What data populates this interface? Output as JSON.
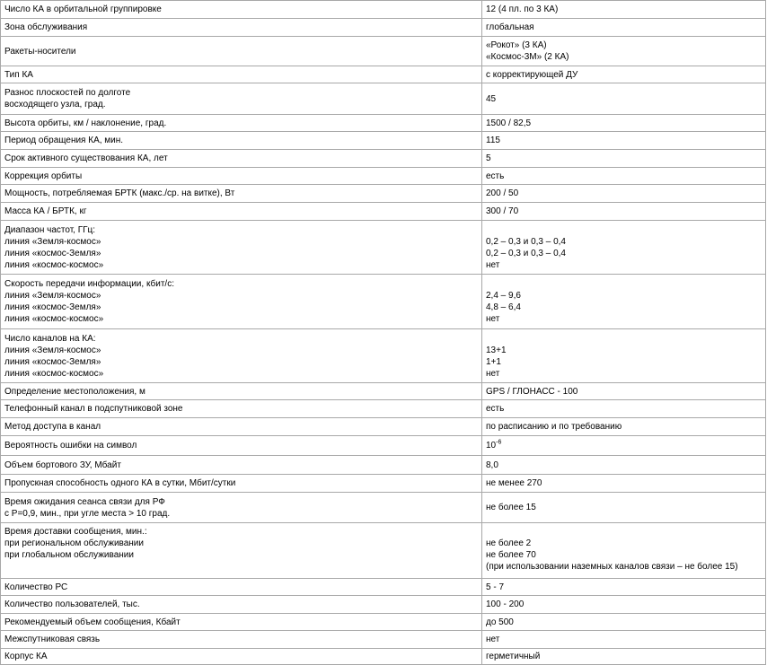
{
  "rows": [
    {
      "label": [
        "Число КА в орбитальной группировке"
      ],
      "value": [
        "12 (4 пл. по 3 КА)"
      ]
    },
    {
      "label": [
        "Зона обслуживания"
      ],
      "value": [
        "глобальная"
      ]
    },
    {
      "label": [
        "Ракеты-носители"
      ],
      "value": [
        "«Рокот» (3 КА)",
        "«Космос-3М» (2 КА)"
      ]
    },
    {
      "label": [
        "Тип КА"
      ],
      "value": [
        "с корректирующей ДУ"
      ]
    },
    {
      "label": [
        "Разнос плоскостей по долготе",
        "восходящего узла, град."
      ],
      "value": [
        "45"
      ]
    },
    {
      "label": [
        "Высота орбиты, км / наклонение, град."
      ],
      "value": [
        "1500 / 82,5"
      ]
    },
    {
      "label": [
        "Период обращения КА, мин."
      ],
      "value": [
        "115"
      ]
    },
    {
      "label": [
        "Срок активного существования КА, лет"
      ],
      "value": [
        "5"
      ]
    },
    {
      "label": [
        "Коррекция орбиты"
      ],
      "value": [
        "есть"
      ]
    },
    {
      "label": [
        "Мощность, потребляемая БРТК (макс./ср. на витке), Вт"
      ],
      "value": [
        "200 / 50"
      ]
    },
    {
      "label": [
        "Масса КА / БРТК, кг"
      ],
      "value": [
        "300 / 70"
      ]
    },
    {
      "label": [
        "Диапазон частот, ГГц:",
        "линия «Земля-космос»",
        "линия «космос-Земля»",
        "линия «космос-космос»"
      ],
      "value": [
        "0,2 – 0,3 и 0,3 – 0,4",
        "0,2 – 0,3 и 0,3 – 0,4",
        "нет"
      ]
    },
    {
      "label": [
        "Скорость передачи информации, кбит/с:",
        "линия «Земля-космос»",
        "линия «космос-Земля»",
        "линия «космос-космос»"
      ],
      "value": [
        "2,4 – 9,6",
        "4,8 – 6,4",
        "нет"
      ]
    },
    {
      "label": [
        "Число каналов на КА:",
        "линия «Земля-космос»",
        "линия «космос-Земля»",
        "линия «космос-космос»"
      ],
      "value": [
        "13+1",
        "1+1",
        "нет"
      ]
    },
    {
      "label": [
        "Определение местоположения, м"
      ],
      "value": [
        "GPS / ГЛОНАСС - 100"
      ]
    },
    {
      "label": [
        "Телефонный канал в подспутниковой зоне"
      ],
      "value": [
        "есть"
      ]
    },
    {
      "label": [
        "Метод доступа в канал"
      ],
      "value": [
        "по расписанию и по требованию"
      ]
    },
    {
      "label": [
        "Вероятность ошибки на символ"
      ],
      "value": [
        "10"
      ],
      "value_sup": "-6"
    },
    {
      "label": [
        "Объем бортового ЗУ, Мбайт"
      ],
      "value": [
        "8,0"
      ]
    },
    {
      "label": [
        "Пропускная способность одного КА в сутки, Мбит/сутки"
      ],
      "value": [
        "не менее 270"
      ]
    },
    {
      "label": [
        "Время ожидания сеанса связи для РФ",
        "с P=0,9, мин., при угле места > 10 град."
      ],
      "value": [
        "не более 15"
      ]
    },
    {
      "label": [
        "Время доставки сообщения, мин.:",
        "при региональном обслуживании",
        "при глобальном обслуживании"
      ],
      "value": [
        "не более 2",
        "не более 70",
        "(при использовании наземных каналов связи – не более 15)"
      ]
    },
    {
      "label": [
        "Количество РС"
      ],
      "value": [
        "5 - 7"
      ]
    },
    {
      "label": [
        "Количество пользователей, тыс."
      ],
      "value": [
        "100 - 200"
      ]
    },
    {
      "label": [
        "Рекомендуемый объем сообщения, Кбайт"
      ],
      "value": [
        "до 500"
      ]
    },
    {
      "label": [
        "Межспутниковая связь"
      ],
      "value": [
        "нет"
      ]
    },
    {
      "label": [
        "Корпус КА"
      ],
      "value": [
        "герметичный"
      ]
    }
  ]
}
